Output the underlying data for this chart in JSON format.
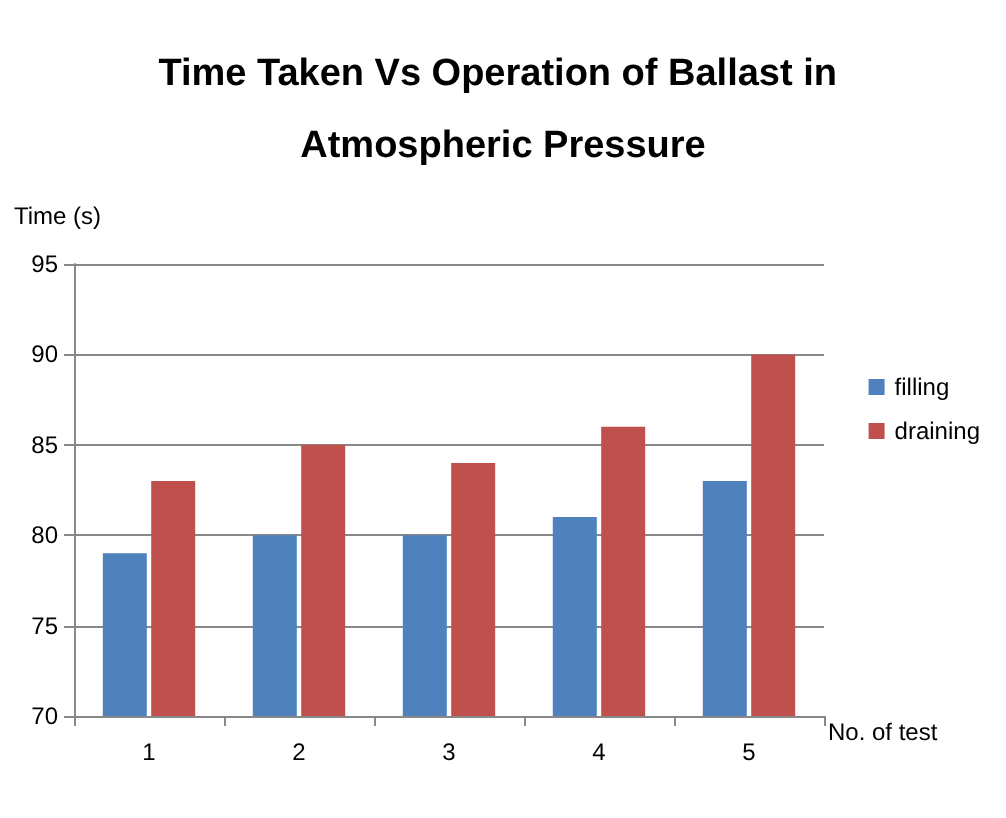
{
  "chart_data": {
    "type": "bar",
    "title": "Time Taken Vs Operation of Ballast in Atmospheric Pressure",
    "xlabel": "No. of test",
    "ylabel": "Time (s)",
    "categories": [
      "1",
      "2",
      "3",
      "4",
      "5"
    ],
    "series": [
      {
        "name": "filling",
        "color": "#4f81bd",
        "values": [
          79,
          80,
          80,
          81,
          83
        ]
      },
      {
        "name": "draining",
        "color": "#c0504d",
        "values": [
          83,
          85,
          84,
          86,
          90
        ]
      }
    ],
    "ylim": [
      70,
      95
    ],
    "yticks": [
      70,
      75,
      80,
      85,
      90,
      95
    ],
    "grid": "y",
    "legend": "right"
  }
}
